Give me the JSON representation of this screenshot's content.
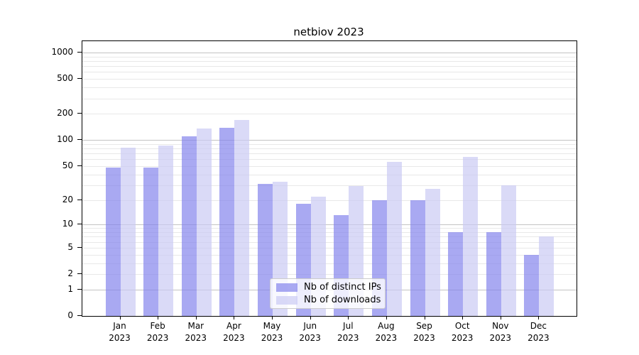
{
  "title": "netbiov 2023",
  "chart_data": {
    "type": "bar",
    "title": "netbiov 2023",
    "categories": [
      "Jan",
      "Feb",
      "Mar",
      "Apr",
      "May",
      "Jun",
      "Jul",
      "Aug",
      "Sep",
      "Oct",
      "Nov",
      "Dec"
    ],
    "year_label": "2023",
    "series": [
      {
        "name": "Nb of distinct IPs",
        "color": "rgba(132,132,236,0.7)",
        "values": [
          48,
          48,
          110,
          139,
          31,
          18,
          13,
          20,
          20,
          8,
          8,
          4
        ]
      },
      {
        "name": "Nb of downloads",
        "color": "rgba(202,202,244,0.7)",
        "values": [
          82,
          86,
          136,
          169,
          33,
          22,
          29,
          56,
          27,
          64,
          30,
          7
        ]
      }
    ],
    "y_scale": "log1p",
    "y_ticks": [
      0,
      1,
      2,
      5,
      10,
      20,
      50,
      100,
      200,
      500,
      1000
    ],
    "y_major_gridlines": [
      1,
      10,
      100,
      1000
    ],
    "ylim": [
      0,
      1348
    ],
    "grid": true,
    "legend_position": "lower center",
    "colors": {
      "grid_major": "#c3c3c3",
      "grid_minor": "#e8e8e8",
      "axis": "#000000",
      "legend_border": "#cccccc"
    }
  }
}
